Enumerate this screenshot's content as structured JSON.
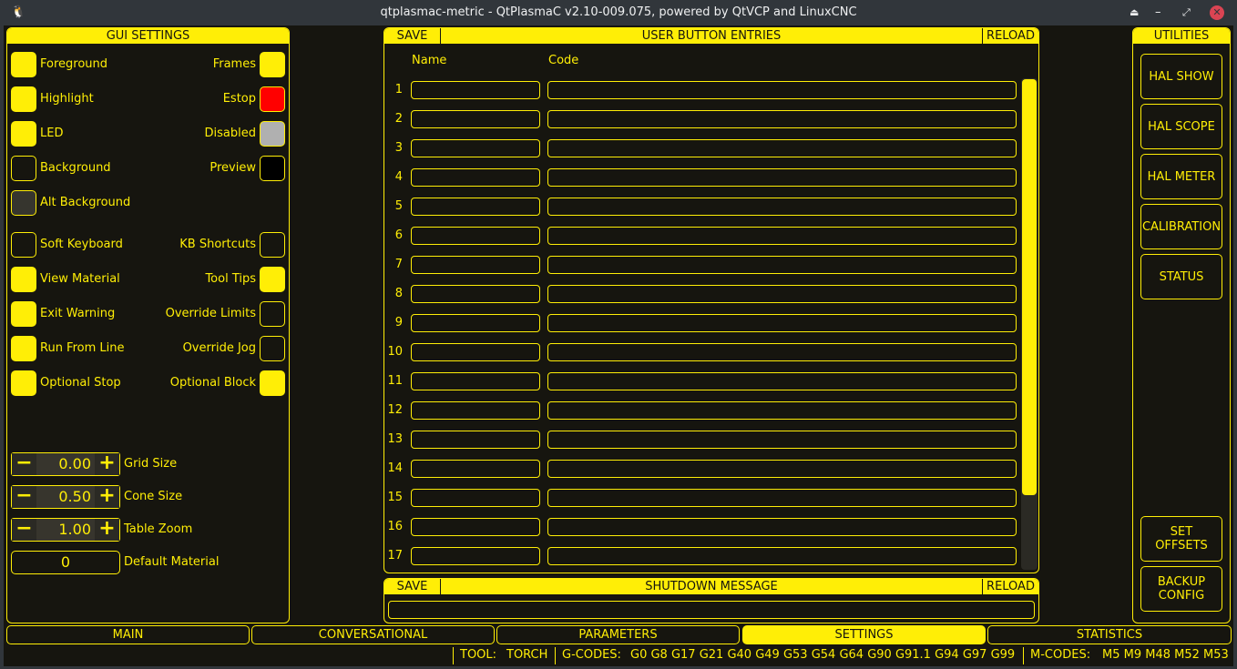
{
  "window": {
    "title": "qtplasmac-metric - QtPlasmaC v2.10-009.075, powered by QtVCP and LinuxCNC"
  },
  "gui_settings": {
    "title": "GUI SETTINGS",
    "left": [
      {
        "label": "Foreground",
        "color": "#ffee06"
      },
      {
        "label": "Highlight",
        "color": "#ffee06"
      },
      {
        "label": "LED",
        "color": "#ffee06"
      },
      {
        "label": "Background",
        "color": "#16150f"
      },
      {
        "label": "Alt Background",
        "color": "#36352e"
      }
    ],
    "right": [
      {
        "label": "Frames",
        "color": "#ffee06"
      },
      {
        "label": "Estop",
        "color": "#ff0000"
      },
      {
        "label": "Disabled",
        "color": "#b0b0b0"
      },
      {
        "label": "Preview",
        "color": "#000000"
      }
    ],
    "checks_left": [
      {
        "label": "Soft Keyboard",
        "checked": false
      },
      {
        "label": "View Material",
        "checked": true
      },
      {
        "label": "Exit Warning",
        "checked": true
      },
      {
        "label": "Run From Line",
        "checked": true
      },
      {
        "label": "Optional Stop",
        "checked": true
      }
    ],
    "checks_right": [
      {
        "label": "KB Shortcuts",
        "checked": false
      },
      {
        "label": "Tool Tips",
        "checked": true
      },
      {
        "label": "Override Limits",
        "checked": false
      },
      {
        "label": "Override Jog",
        "checked": false
      },
      {
        "label": "Optional Block",
        "checked": true
      }
    ],
    "spins": [
      {
        "label": "Grid Size",
        "value": "0.00"
      },
      {
        "label": "Cone Size",
        "value": "0.50"
      },
      {
        "label": "Table Zoom",
        "value": "1.00"
      }
    ],
    "default_material": {
      "label": "Default Material",
      "value": "0"
    }
  },
  "user_buttons": {
    "save": "SAVE",
    "title": "USER BUTTON ENTRIES",
    "reload": "RELOAD",
    "col_name": "Name",
    "col_code": "Code",
    "rows": [
      "1",
      "2",
      "3",
      "4",
      "5",
      "6",
      "7",
      "8",
      "9",
      "10",
      "11",
      "12",
      "13",
      "14",
      "15",
      "16",
      "17"
    ]
  },
  "shutdown": {
    "save": "SAVE",
    "title": "SHUTDOWN MESSAGE",
    "reload": "RELOAD",
    "value": ""
  },
  "utilities": {
    "title": "UTILITIES",
    "buttons": [
      "HAL SHOW",
      "HAL SCOPE",
      "HAL METER",
      "CALIBRATION",
      "STATUS"
    ],
    "bottom_buttons": [
      "SET\nOFFSETS",
      "BACKUP\nCONFIG"
    ]
  },
  "tabs": [
    {
      "label": "MAIN",
      "active": false
    },
    {
      "label": "CONVERSATIONAL",
      "active": false
    },
    {
      "label": "PARAMETERS",
      "active": false
    },
    {
      "label": "SETTINGS",
      "active": true
    },
    {
      "label": "STATISTICS",
      "active": false
    }
  ],
  "status": {
    "tool_label": "TOOL:",
    "tool": "TORCH",
    "gcodes_label": "G-CODES:",
    "gcodes": "G0 G8 G17 G21 G40 G49 G53 G54 G64 G90 G91.1 G94 G97 G99",
    "mcodes_label": "M-CODES:",
    "mcodes": "M5 M9 M48 M52 M53"
  },
  "colors": {
    "accent": "#ffee06",
    "background": "#16150f"
  }
}
